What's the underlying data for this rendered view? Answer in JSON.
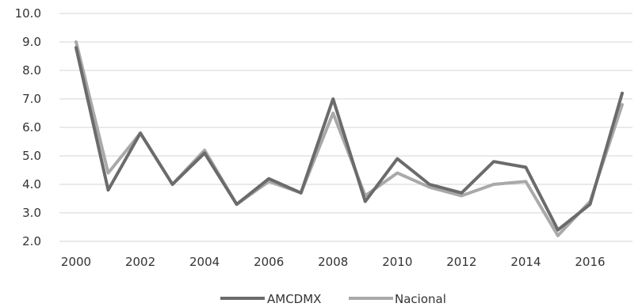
{
  "chart_data": {
    "type": "line",
    "x": [
      2000,
      2001,
      2002,
      2003,
      2004,
      2005,
      2006,
      2007,
      2008,
      2009,
      2010,
      2011,
      2012,
      2013,
      2014,
      2015,
      2016,
      2017
    ],
    "x_tick_labels": [
      "2000",
      "2002",
      "2004",
      "2006",
      "2008",
      "2010",
      "2012",
      "2014",
      "2016"
    ],
    "y_tick_labels": [
      "2.0",
      "3.0",
      "4.0",
      "5.0",
      "6.0",
      "7.0",
      "8.0",
      "9.0",
      "10.0"
    ],
    "ylim": [
      2.0,
      10.0
    ],
    "xlim": [
      2000,
      2017
    ],
    "grid": "horizontal",
    "legend_position": "bottom",
    "series": [
      {
        "name": "AMCDMX",
        "color": "#6b6b6b",
        "values": [
          8.8,
          3.8,
          5.8,
          4.0,
          5.1,
          3.3,
          4.2,
          3.7,
          7.0,
          3.4,
          4.9,
          4.0,
          3.7,
          4.8,
          4.6,
          2.4,
          3.3,
          7.2
        ]
      },
      {
        "name": "Nacional",
        "color": "#a9a9a9",
        "values": [
          9.0,
          4.4,
          5.8,
          4.0,
          5.2,
          3.3,
          4.1,
          3.7,
          6.5,
          3.6,
          4.4,
          3.9,
          3.6,
          4.0,
          4.1,
          2.2,
          3.4,
          6.8
        ]
      }
    ]
  }
}
